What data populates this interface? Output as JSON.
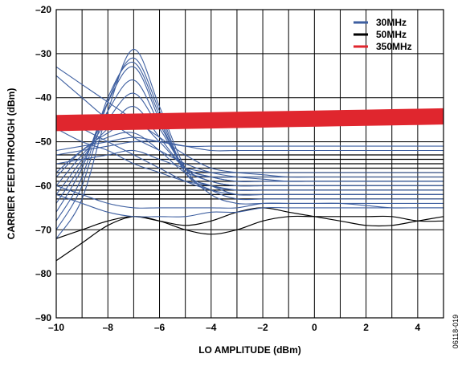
{
  "chart_data": {
    "type": "line",
    "xlabel": "LO AMPLITUDE (dBm)",
    "ylabel": "CARRIER FEEDTHROUGH (dBm)",
    "xlim": [
      -10,
      5
    ],
    "ylim": [
      -90,
      -20
    ],
    "x_ticks": [
      -10,
      -8,
      -6,
      -4,
      -2,
      0,
      2,
      4
    ],
    "x_tick_labels": [
      "–10",
      "–8",
      "–6",
      "–4",
      "–2",
      "0",
      "2",
      "4"
    ],
    "y_ticks": [
      -90,
      -80,
      -70,
      -60,
      -50,
      -40,
      -30,
      -20
    ],
    "y_tick_labels": [
      "–90",
      "–80",
      "–70",
      "–60",
      "–50",
      "–40",
      "–30",
      "–20"
    ],
    "grid": true,
    "legend_position": "top-right",
    "figure_id": "06118-019",
    "x": [
      -10,
      -9,
      -8,
      -7,
      -6,
      -5,
      -4,
      -3,
      -2,
      -1,
      0,
      1,
      2,
      3,
      4,
      5
    ],
    "series": [
      {
        "name": "30MHz",
        "color": "#3e5fa0",
        "curves": [
          [
            -33,
            -37,
            -41,
            -45,
            -49,
            -53,
            -56,
            -57,
            -57.5,
            -58,
            -58,
            -58,
            -58,
            -58,
            -58,
            -58
          ],
          [
            -35,
            -40,
            -45,
            -49,
            -52,
            -55,
            -57,
            -58,
            -58.5,
            -59,
            -59,
            -59,
            -59,
            -59,
            -59,
            -59
          ],
          [
            -44,
            -47,
            -50,
            -53,
            -56,
            -59,
            -61,
            -62,
            -62,
            -62,
            -62,
            -62,
            -62,
            -62,
            -62,
            -62
          ],
          [
            -47,
            -50,
            -52,
            -55,
            -57,
            -59,
            -60,
            -61,
            -61,
            -61,
            -61,
            -61,
            -61,
            -61,
            -61,
            -61
          ],
          [
            -72,
            -63,
            -43,
            -29,
            -42,
            -56,
            -62,
            -64,
            -64,
            -64,
            -64,
            -64,
            -64.5,
            -65,
            -65,
            -65
          ],
          [
            -70,
            -60,
            -41,
            -31,
            -43,
            -57,
            -61,
            -63,
            -63,
            -63,
            -63,
            -63,
            -63,
            -63,
            -63,
            -63
          ],
          [
            -68,
            -58,
            -40,
            -32,
            -44,
            -57,
            -60,
            -62,
            -62,
            -62,
            -62,
            -62,
            -62,
            -62,
            -62,
            -62
          ],
          [
            -66,
            -56,
            -41,
            -33,
            -45,
            -57,
            -60,
            -61,
            -61,
            -61,
            -61,
            -61,
            -61,
            -61,
            -61,
            -61
          ],
          [
            -64,
            -55,
            -43,
            -36,
            -46,
            -56,
            -59,
            -60,
            -60,
            -60,
            -60,
            -60,
            -60,
            -60,
            -60,
            -60
          ],
          [
            -62,
            -54,
            -45,
            -39,
            -47,
            -56,
            -59,
            -60,
            -60,
            -60,
            -60,
            -60,
            -60,
            -60,
            -60,
            -60
          ],
          [
            -60,
            -53,
            -47,
            -42,
            -49,
            -56,
            -58,
            -59,
            -59,
            -59,
            -59,
            -59,
            -59,
            -59,
            -59,
            -59
          ],
          [
            -58,
            -52,
            -48,
            -45,
            -50,
            -56,
            -58,
            -59,
            -59,
            -59,
            -59,
            -59,
            -59,
            -59,
            -59,
            -59
          ],
          [
            -57,
            -52,
            -49,
            -48,
            -52,
            -57,
            -58,
            -58,
            -58,
            -58,
            -58,
            -58,
            -58,
            -58,
            -58,
            -58
          ],
          [
            -55,
            -54,
            -53,
            -52,
            -54,
            -56,
            -57,
            -57,
            -57,
            -57,
            -57,
            -57,
            -57,
            -57,
            -57,
            -57
          ],
          [
            -53,
            -52,
            -51,
            -50,
            -50,
            -51,
            -52,
            -52,
            -52,
            -52,
            -52,
            -52,
            -52,
            -52,
            -52,
            -52
          ],
          [
            -52,
            -51,
            -50,
            -49,
            -50,
            -51,
            -51,
            -51,
            -51,
            -51,
            -51,
            -51,
            -51,
            -51,
            -51,
            -51
          ],
          [
            -60,
            -62,
            -64,
            -65,
            -65,
            -65,
            -65,
            -65,
            -64,
            -64,
            -64,
            -64,
            -64,
            -64,
            -64,
            -64
          ],
          [
            -62,
            -64,
            -66,
            -67,
            -67,
            -67,
            -66,
            -66,
            -65,
            -65,
            -65,
            -65,
            -65,
            -65,
            -65,
            -65
          ]
        ]
      },
      {
        "name": "50MHz",
        "color": "#000000",
        "curves": [
          [
            -77,
            -73,
            -69,
            -67,
            -68,
            -70,
            -71,
            -70,
            -68,
            -67,
            -67,
            -67,
            -67,
            -67,
            -68,
            -68
          ],
          [
            -72,
            -70,
            -68,
            -67,
            -68,
            -69,
            -68,
            -66,
            -65,
            -66,
            -67,
            -68,
            -69,
            -69,
            -68,
            -67
          ],
          [
            -56,
            -56,
            -56,
            -56,
            -56,
            -56,
            -56,
            -56,
            -56,
            -56,
            -56,
            -56,
            -56,
            -56,
            -56,
            -56
          ],
          [
            -57,
            -57,
            -57,
            -57,
            -57,
            -57,
            -57,
            -57,
            -57,
            -57,
            -57,
            -57,
            -57,
            -57,
            -57,
            -57
          ],
          [
            -58,
            -58,
            -58,
            -58,
            -58,
            -58,
            -58,
            -58,
            -58,
            -58,
            -58,
            -58,
            -58,
            -58,
            -58,
            -58
          ],
          [
            -59,
            -59,
            -59,
            -59,
            -59,
            -59,
            -59,
            -59,
            -59,
            -59,
            -59,
            -59,
            -59,
            -59,
            -59,
            -59
          ],
          [
            -60,
            -60,
            -60,
            -60,
            -60,
            -60,
            -60,
            -60,
            -60,
            -60,
            -60,
            -60,
            -60,
            -60,
            -60,
            -60
          ],
          [
            -61,
            -61,
            -61,
            -61,
            -61,
            -61,
            -61,
            -61,
            -61,
            -61,
            -61,
            -61,
            -61,
            -61,
            -61,
            -61
          ],
          [
            -55,
            -55,
            -55,
            -55,
            -55,
            -55,
            -55,
            -55,
            -55,
            -55,
            -55,
            -55,
            -55,
            -55,
            -55,
            -55
          ],
          [
            -54,
            -54,
            -54,
            -54,
            -54,
            -54,
            -54,
            -54,
            -54,
            -54,
            -54,
            -54,
            -54,
            -54,
            -54,
            -54
          ],
          [
            -62,
            -62,
            -62,
            -62,
            -62,
            -62,
            -62,
            -62,
            -62,
            -62,
            -62,
            -62,
            -62,
            -62,
            -62,
            -62
          ],
          [
            -63,
            -63,
            -63,
            -63,
            -63,
            -63,
            -63,
            -63,
            -63,
            -63,
            -63,
            -63,
            -63,
            -63,
            -63,
            -63
          ],
          [
            -53,
            -53,
            -53,
            -53,
            -53,
            -53,
            -53,
            -53,
            -53,
            -53,
            -53,
            -53,
            -53,
            -53,
            -53,
            -53
          ]
        ]
      },
      {
        "name": "350MHz",
        "color": "#e0262e",
        "band_low": [
          -47.5,
          -47.4,
          -47.3,
          -47.2,
          -47.1,
          -47,
          -46.9,
          -46.8,
          -46.7,
          -46.6,
          -46.5,
          -46.4,
          -46.3,
          -46.2,
          -46.1,
          -46
        ],
        "band_high": [
          -44,
          -43.9,
          -43.8,
          -43.7,
          -43.6,
          -43.5,
          -43.4,
          -43.3,
          -43.2,
          -43.1,
          -43,
          -42.9,
          -42.8,
          -42.7,
          -42.6,
          -42.5
        ]
      }
    ]
  }
}
